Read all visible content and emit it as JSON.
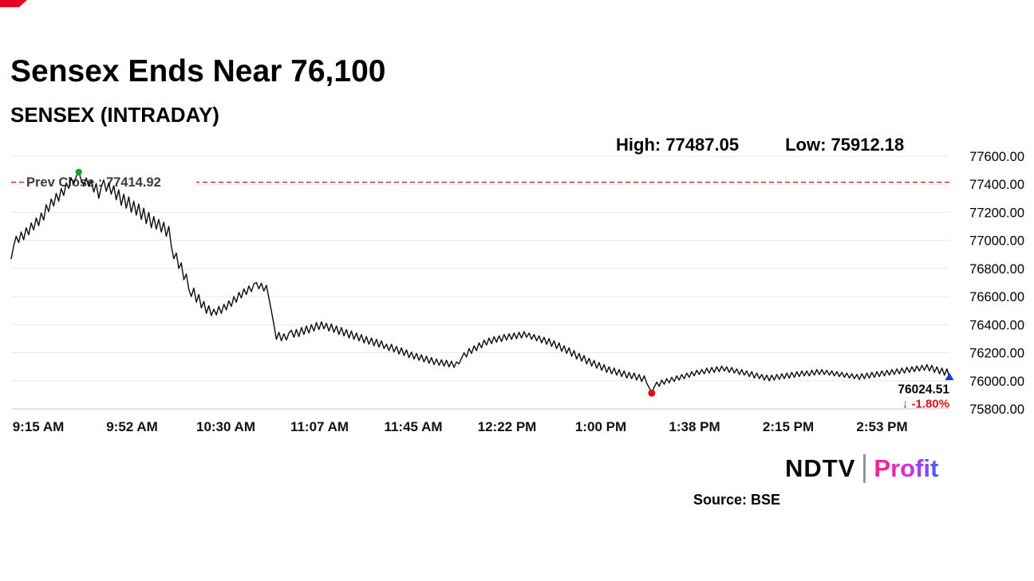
{
  "header": {
    "title": "Sensex Ends Near 76,100",
    "subtitle": "SENSEX (INTRADAY)",
    "high_text": "High: 77487.05",
    "low_text": "Low: 75912.18"
  },
  "footer": {
    "logo_ndtv": "NDTV",
    "logo_profit": "Profit",
    "source": "Source: BSE"
  },
  "colors": {
    "line": "#0a0a0a",
    "prev_close_line": "#d01616",
    "peak_marker": "#1e9e33",
    "low_marker": "#e01212",
    "end_marker": "#1a3bd6",
    "change_text": "#e01212",
    "brand_red": "#e60023"
  },
  "chart_data": {
    "type": "line",
    "title": "SENSEX (INTRADAY)",
    "x_unit": "minutes since 9:15 AM",
    "ylim": [
      75800,
      77600
    ],
    "y_tick_step": 200,
    "grid": "horizontal",
    "x_ticks": [
      {
        "label": "9:15 AM",
        "t": 0
      },
      {
        "label": "9:52 AM",
        "t": 37
      },
      {
        "label": "10:30 AM",
        "t": 75
      },
      {
        "label": "11:07 AM",
        "t": 112
      },
      {
        "label": "11:45 AM",
        "t": 150
      },
      {
        "label": "12:22 PM",
        "t": 187
      },
      {
        "label": "1:00 PM",
        "t": 225
      },
      {
        "label": "1:38 PM",
        "t": 263
      },
      {
        "label": "2:15 PM",
        "t": 300
      },
      {
        "label": "2:53 PM",
        "t": 338
      }
    ],
    "prev_close": {
      "label": "Prev Close : 77414.92",
      "value": 77414.92
    },
    "high": 77487.05,
    "low": 75912.18,
    "last": 76024.51,
    "last_text": "76024.51",
    "change_text": "↓ -1.80%",
    "markers": {
      "peak": {
        "t": 27,
        "v": 77487.05,
        "color": "#1e9e33"
      },
      "low": {
        "t": 256,
        "v": 75912.18,
        "color": "#e01212"
      },
      "end": {
        "t": 375,
        "v": 76024.51,
        "color": "#1a3bd6"
      }
    },
    "points": [
      [
        0,
        76870
      ],
      [
        1,
        76960
      ],
      [
        2,
        77030
      ],
      [
        3,
        76985
      ],
      [
        4,
        77060
      ],
      [
        5,
        77005
      ],
      [
        6,
        77090
      ],
      [
        7,
        77040
      ],
      [
        8,
        77125
      ],
      [
        9,
        77075
      ],
      [
        10,
        77160
      ],
      [
        11,
        77105
      ],
      [
        12,
        77195
      ],
      [
        13,
        77145
      ],
      [
        14,
        77255
      ],
      [
        15,
        77205
      ],
      [
        16,
        77295
      ],
      [
        17,
        77245
      ],
      [
        18,
        77335
      ],
      [
        19,
        77280
      ],
      [
        20,
        77370
      ],
      [
        21,
        77320
      ],
      [
        22,
        77410
      ],
      [
        23,
        77370
      ],
      [
        24,
        77445
      ],
      [
        25,
        77400
      ],
      [
        26,
        77455
      ],
      [
        27,
        77487
      ],
      [
        28,
        77430
      ],
      [
        29,
        77395
      ],
      [
        30,
        77445
      ],
      [
        31,
        77385
      ],
      [
        32,
        77425
      ],
      [
        33,
        77345
      ],
      [
        34,
        77405
      ],
      [
        35,
        77300
      ],
      [
        36,
        77380
      ],
      [
        37,
        77430
      ],
      [
        38,
        77350
      ],
      [
        39,
        77410
      ],
      [
        40,
        77330
      ],
      [
        41,
        77390
      ],
      [
        42,
        77290
      ],
      [
        43,
        77360
      ],
      [
        44,
        77250
      ],
      [
        45,
        77330
      ],
      [
        46,
        77230
      ],
      [
        47,
        77310
      ],
      [
        48,
        77200
      ],
      [
        49,
        77280
      ],
      [
        50,
        77180
      ],
      [
        51,
        77260
      ],
      [
        52,
        77150
      ],
      [
        53,
        77230
      ],
      [
        54,
        77120
      ],
      [
        55,
        77200
      ],
      [
        56,
        77090
      ],
      [
        57,
        77170
      ],
      [
        58,
        77080
      ],
      [
        59,
        77150
      ],
      [
        60,
        77060
      ],
      [
        61,
        77130
      ],
      [
        62,
        77030
      ],
      [
        63,
        77100
      ],
      [
        64,
        76960
      ],
      [
        65,
        76870
      ],
      [
        66,
        76910
      ],
      [
        67,
        76800
      ],
      [
        68,
        76840
      ],
      [
        69,
        76720
      ],
      [
        70,
        76760
      ],
      [
        71,
        76650
      ],
      [
        72,
        76600
      ],
      [
        73,
        76660
      ],
      [
        74,
        76560
      ],
      [
        75,
        76615
      ],
      [
        76,
        76520
      ],
      [
        77,
        76565
      ],
      [
        78,
        76480
      ],
      [
        79,
        76535
      ],
      [
        80,
        76465
      ],
      [
        81,
        76510
      ],
      [
        82,
        76470
      ],
      [
        83,
        76530
      ],
      [
        84,
        76480
      ],
      [
        85,
        76545
      ],
      [
        86,
        76505
      ],
      [
        87,
        76570
      ],
      [
        88,
        76530
      ],
      [
        89,
        76600
      ],
      [
        90,
        76560
      ],
      [
        91,
        76630
      ],
      [
        92,
        76590
      ],
      [
        93,
        76655
      ],
      [
        94,
        76615
      ],
      [
        95,
        76675
      ],
      [
        96,
        76635
      ],
      [
        97,
        76690
      ],
      [
        98,
        76700
      ],
      [
        99,
        76655
      ],
      [
        100,
        76695
      ],
      [
        101,
        76640
      ],
      [
        102,
        76680
      ],
      [
        103,
        76590
      ],
      [
        104,
        76500
      ],
      [
        105,
        76400
      ],
      [
        106,
        76295
      ],
      [
        107,
        76345
      ],
      [
        108,
        76285
      ],
      [
        109,
        76335
      ],
      [
        110,
        76290
      ],
      [
        111,
        76340
      ],
      [
        112,
        76360
      ],
      [
        113,
        76310
      ],
      [
        114,
        76365
      ],
      [
        115,
        76315
      ],
      [
        116,
        76380
      ],
      [
        117,
        76330
      ],
      [
        118,
        76390
      ],
      [
        119,
        76340
      ],
      [
        120,
        76400
      ],
      [
        121,
        76355
      ],
      [
        122,
        76415
      ],
      [
        123,
        76365
      ],
      [
        124,
        76420
      ],
      [
        125,
        76370
      ],
      [
        126,
        76410
      ],
      [
        127,
        76355
      ],
      [
        128,
        76405
      ],
      [
        129,
        76345
      ],
      [
        130,
        76390
      ],
      [
        131,
        76330
      ],
      [
        132,
        76380
      ],
      [
        133,
        76320
      ],
      [
        134,
        76365
      ],
      [
        135,
        76305
      ],
      [
        136,
        76355
      ],
      [
        137,
        76295
      ],
      [
        138,
        76340
      ],
      [
        139,
        76285
      ],
      [
        140,
        76330
      ],
      [
        141,
        76270
      ],
      [
        142,
        76315
      ],
      [
        143,
        76260
      ],
      [
        144,
        76305
      ],
      [
        145,
        76250
      ],
      [
        146,
        76295
      ],
      [
        147,
        76240
      ],
      [
        148,
        76285
      ],
      [
        149,
        76230
      ],
      [
        150,
        76260
      ],
      [
        151,
        76215
      ],
      [
        152,
        76260
      ],
      [
        153,
        76205
      ],
      [
        154,
        76245
      ],
      [
        155,
        76190
      ],
      [
        156,
        76235
      ],
      [
        157,
        76180
      ],
      [
        158,
        76220
      ],
      [
        159,
        76165
      ],
      [
        160,
        76205
      ],
      [
        161,
        76155
      ],
      [
        162,
        76195
      ],
      [
        163,
        76145
      ],
      [
        164,
        76185
      ],
      [
        165,
        76135
      ],
      [
        166,
        76175
      ],
      [
        167,
        76125
      ],
      [
        168,
        76165
      ],
      [
        169,
        76115
      ],
      [
        170,
        76155
      ],
      [
        171,
        76110
      ],
      [
        172,
        76150
      ],
      [
        173,
        76105
      ],
      [
        174,
        76145
      ],
      [
        175,
        76100
      ],
      [
        176,
        76140
      ],
      [
        177,
        76095
      ],
      [
        178,
        76135
      ],
      [
        179,
        76120
      ],
      [
        180,
        76160
      ],
      [
        181,
        76200
      ],
      [
        182,
        76170
      ],
      [
        183,
        76230
      ],
      [
        184,
        76195
      ],
      [
        185,
        76250
      ],
      [
        186,
        76215
      ],
      [
        187,
        76270
      ],
      [
        188,
        76235
      ],
      [
        189,
        76290
      ],
      [
        190,
        76255
      ],
      [
        191,
        76305
      ],
      [
        192,
        76265
      ],
      [
        193,
        76315
      ],
      [
        194,
        76275
      ],
      [
        195,
        76320
      ],
      [
        196,
        76280
      ],
      [
        197,
        76330
      ],
      [
        198,
        76290
      ],
      [
        199,
        76335
      ],
      [
        200,
        76295
      ],
      [
        201,
        76340
      ],
      [
        202,
        76300
      ],
      [
        203,
        76345
      ],
      [
        204,
        76305
      ],
      [
        205,
        76350
      ],
      [
        206,
        76310
      ],
      [
        207,
        76340
      ],
      [
        208,
        76295
      ],
      [
        209,
        76330
      ],
      [
        210,
        76285
      ],
      [
        211,
        76320
      ],
      [
        212,
        76270
      ],
      [
        213,
        76310
      ],
      [
        214,
        76260
      ],
      [
        215,
        76300
      ],
      [
        216,
        76245
      ],
      [
        217,
        76285
      ],
      [
        218,
        76230
      ],
      [
        219,
        76270
      ],
      [
        220,
        76210
      ],
      [
        221,
        76250
      ],
      [
        222,
        76195
      ],
      [
        223,
        76235
      ],
      [
        224,
        76175
      ],
      [
        225,
        76215
      ],
      [
        226,
        76155
      ],
      [
        227,
        76195
      ],
      [
        228,
        76140
      ],
      [
        229,
        76180
      ],
      [
        230,
        76120
      ],
      [
        231,
        76160
      ],
      [
        232,
        76105
      ],
      [
        233,
        76145
      ],
      [
        234,
        76090
      ],
      [
        235,
        76130
      ],
      [
        236,
        76075
      ],
      [
        237,
        76115
      ],
      [
        238,
        76060
      ],
      [
        239,
        76100
      ],
      [
        240,
        76050
      ],
      [
        241,
        76090
      ],
      [
        242,
        76040
      ],
      [
        243,
        76080
      ],
      [
        244,
        76030
      ],
      [
        245,
        76070
      ],
      [
        246,
        76020
      ],
      [
        247,
        76060
      ],
      [
        248,
        76015
      ],
      [
        249,
        76055
      ],
      [
        250,
        76005
      ],
      [
        251,
        76045
      ],
      [
        252,
        75995
      ],
      [
        253,
        76035
      ],
      [
        254,
        75985
      ],
      [
        255,
        75950
      ],
      [
        256,
        75912.18
      ],
      [
        257,
        75955
      ],
      [
        258,
        75990
      ],
      [
        259,
        75960
      ],
      [
        260,
        76005
      ],
      [
        261,
        75975
      ],
      [
        262,
        76015
      ],
      [
        263,
        75985
      ],
      [
        264,
        76025
      ],
      [
        265,
        75995
      ],
      [
        266,
        76035
      ],
      [
        267,
        76005
      ],
      [
        268,
        76045
      ],
      [
        269,
        76015
      ],
      [
        270,
        76055
      ],
      [
        271,
        76025
      ],
      [
        272,
        76065
      ],
      [
        273,
        76035
      ],
      [
        274,
        76075
      ],
      [
        275,
        76045
      ],
      [
        276,
        76080
      ],
      [
        277,
        76050
      ],
      [
        278,
        76090
      ],
      [
        279,
        76055
      ],
      [
        280,
        76095
      ],
      [
        281,
        76060
      ],
      [
        282,
        76100
      ],
      [
        283,
        76065
      ],
      [
        284,
        76105
      ],
      [
        285,
        76070
      ],
      [
        286,
        76100
      ],
      [
        287,
        76060
      ],
      [
        288,
        76095
      ],
      [
        289,
        76055
      ],
      [
        290,
        76085
      ],
      [
        291,
        76045
      ],
      [
        292,
        76080
      ],
      [
        293,
        76040
      ],
      [
        294,
        76070
      ],
      [
        295,
        76030
      ],
      [
        296,
        76065
      ],
      [
        297,
        76020
      ],
      [
        298,
        76055
      ],
      [
        299,
        76015
      ],
      [
        300,
        76045
      ],
      [
        301,
        76005
      ],
      [
        302,
        76040
      ],
      [
        303,
        76000
      ],
      [
        304,
        76040
      ],
      [
        305,
        76005
      ],
      [
        306,
        76045
      ],
      [
        307,
        76010
      ],
      [
        308,
        76050
      ],
      [
        309,
        76015
      ],
      [
        310,
        76055
      ],
      [
        311,
        76020
      ],
      [
        312,
        76060
      ],
      [
        313,
        76025
      ],
      [
        314,
        76065
      ],
      [
        315,
        76030
      ],
      [
        316,
        76070
      ],
      [
        317,
        76035
      ],
      [
        318,
        76070
      ],
      [
        319,
        76035
      ],
      [
        320,
        76075
      ],
      [
        321,
        76040
      ],
      [
        322,
        76080
      ],
      [
        323,
        76045
      ],
      [
        324,
        76080
      ],
      [
        325,
        76045
      ],
      [
        326,
        76075
      ],
      [
        327,
        76040
      ],
      [
        328,
        76070
      ],
      [
        329,
        76035
      ],
      [
        330,
        76065
      ],
      [
        331,
        76030
      ],
      [
        332,
        76060
      ],
      [
        333,
        76025
      ],
      [
        334,
        76055
      ],
      [
        335,
        76020
      ],
      [
        336,
        76050
      ],
      [
        337,
        76015
      ],
      [
        338,
        76045
      ],
      [
        339,
        76010
      ],
      [
        340,
        76050
      ],
      [
        341,
        76015
      ],
      [
        342,
        76055
      ],
      [
        343,
        76020
      ],
      [
        344,
        76060
      ],
      [
        345,
        76025
      ],
      [
        346,
        76065
      ],
      [
        347,
        76030
      ],
      [
        348,
        76070
      ],
      [
        349,
        76035
      ],
      [
        350,
        76075
      ],
      [
        351,
        76040
      ],
      [
        352,
        76080
      ],
      [
        353,
        76045
      ],
      [
        354,
        76085
      ],
      [
        355,
        76050
      ],
      [
        356,
        76090
      ],
      [
        357,
        76055
      ],
      [
        358,
        76095
      ],
      [
        359,
        76060
      ],
      [
        360,
        76100
      ],
      [
        361,
        76065
      ],
      [
        362,
        76105
      ],
      [
        363,
        76070
      ],
      [
        364,
        76110
      ],
      [
        365,
        76075
      ],
      [
        366,
        76115
      ],
      [
        367,
        76070
      ],
      [
        368,
        76110
      ],
      [
        369,
        76060
      ],
      [
        370,
        76100
      ],
      [
        371,
        76050
      ],
      [
        372,
        76090
      ],
      [
        373,
        76040
      ],
      [
        374,
        76085
      ],
      [
        375,
        76024.51
      ]
    ]
  }
}
